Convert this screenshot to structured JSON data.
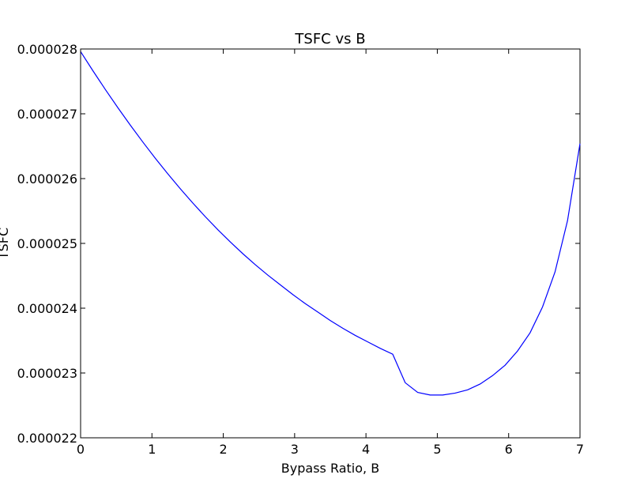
{
  "chart_data": {
    "type": "line",
    "title": "TSFC vs B",
    "xlabel": "Bypass Ratio, B",
    "ylabel": "TSFC",
    "xlim": [
      0,
      7
    ],
    "ylim": [
      2.2e-05,
      2.8e-05
    ],
    "x_ticks": [
      0,
      1,
      2,
      3,
      4,
      5,
      6,
      7
    ],
    "x_tick_labels": [
      "0",
      "1",
      "2",
      "3",
      "4",
      "5",
      "6",
      "7"
    ],
    "y_ticks": [
      2.2e-05,
      2.3e-05,
      2.4e-05,
      2.5e-05,
      2.6e-05,
      2.7e-05,
      2.8e-05
    ],
    "y_tick_labels": [
      "0.000022",
      "0.000023",
      "0.000024",
      "0.000025",
      "0.000026",
      "0.000027",
      "0.000028"
    ],
    "grid": false,
    "line_color": "#0000ff",
    "series": [
      {
        "x": [
          0,
          0.175,
          0.35,
          0.525,
          0.7,
          0.875,
          1.05,
          1.225,
          1.4,
          1.575,
          1.75,
          1.925,
          2.1,
          2.275,
          2.45,
          2.625,
          2.8,
          2.975,
          3.15,
          3.325,
          3.5,
          3.675,
          3.85,
          4.025,
          4.2,
          4.375,
          4.55,
          4.725,
          4.9,
          5.075,
          5.25,
          5.425,
          5.6,
          5.775,
          5.95,
          6.125,
          6.3,
          6.475,
          6.65,
          6.825,
          7.0
        ],
        "y": [
          2.796e-05,
          2.766e-05,
          2.737e-05,
          2.709e-05,
          2.682e-05,
          2.656e-05,
          2.631e-05,
          2.607e-05,
          2.584e-05,
          2.562e-05,
          2.541e-05,
          2.521e-05,
          2.502e-05,
          2.484e-05,
          2.467e-05,
          2.451e-05,
          2.436e-05,
          2.421e-05,
          2.407e-05,
          2.394e-05,
          2.381e-05,
          2.369e-05,
          2.358e-05,
          2.348e-05,
          2.338e-05,
          2.329e-05,
          2.285e-05,
          2.27e-05,
          2.266e-05,
          2.266e-05,
          2.269e-05,
          2.274e-05,
          2.283e-05,
          2.296e-05,
          2.312e-05,
          2.334e-05,
          2.362e-05,
          2.402e-05,
          2.456e-05,
          2.535e-05,
          2.654e-05
        ]
      }
    ]
  }
}
